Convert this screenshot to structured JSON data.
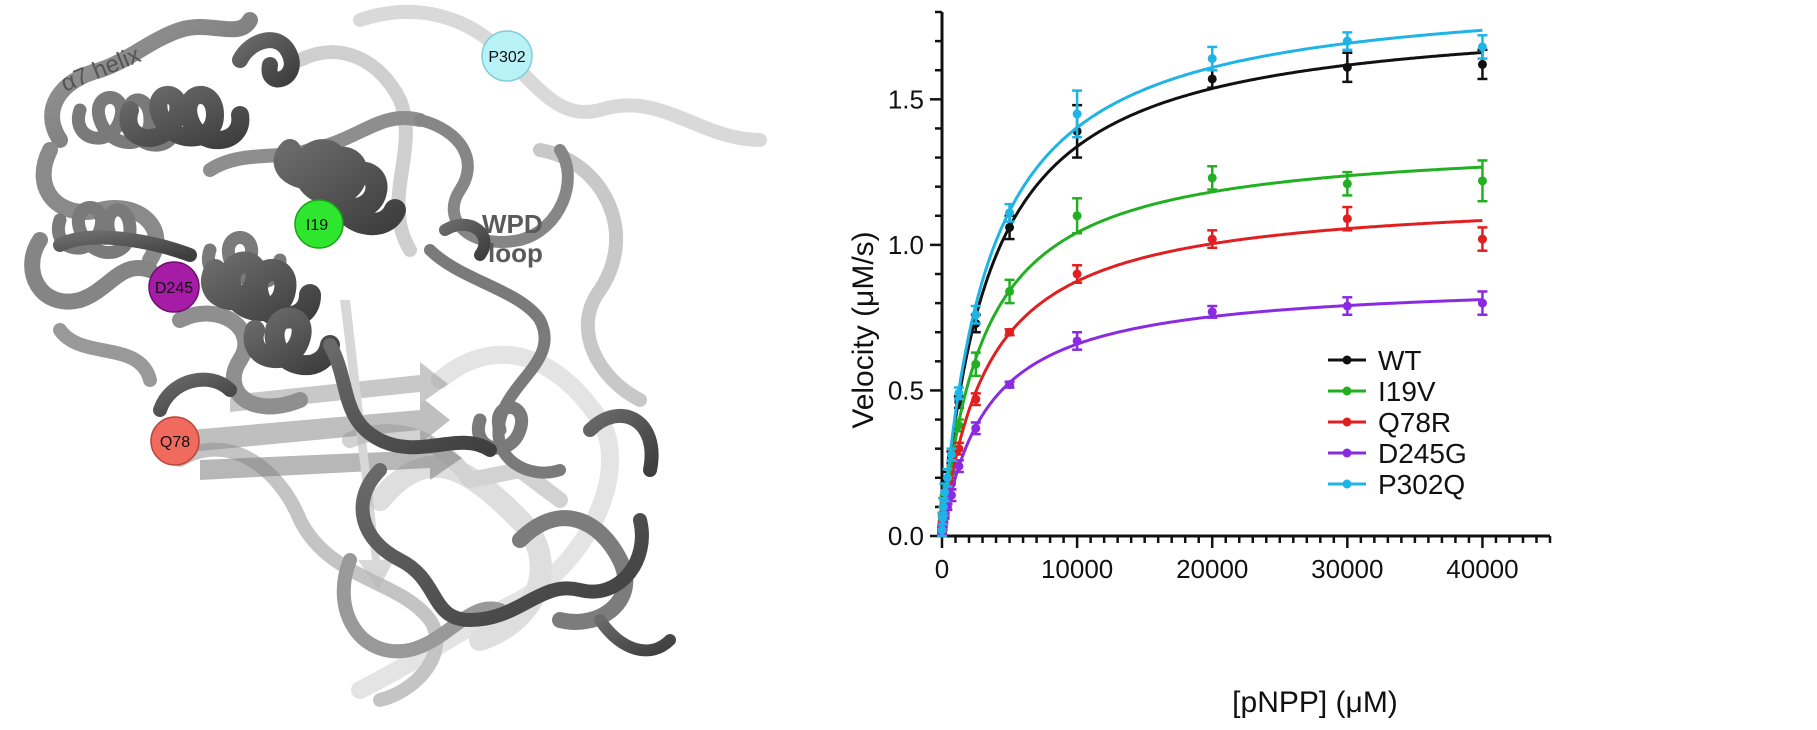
{
  "structure_panel": {
    "labels": {
      "helix": "α7 helix",
      "wpd_line1": "WPD",
      "wpd_line2": "loop"
    },
    "residues": [
      {
        "label": "P302",
        "color": "#b8f2f6"
      },
      {
        "label": "I19",
        "color": "#2ee62e"
      },
      {
        "label": "D245",
        "color": "#a61ca6"
      },
      {
        "label": "Q78",
        "color": "#f06a5e"
      }
    ]
  },
  "chart_data": {
    "type": "scatter",
    "title": "",
    "xlabel": "[pNPP] (μM)",
    "ylabel": "Velocity (μM/s)",
    "xlim": [
      0,
      45000
    ],
    "ylim": [
      0,
      1.8
    ],
    "x_ticks": [
      0,
      10000,
      20000,
      30000,
      40000
    ],
    "x_tick_labels": [
      "0",
      "10000",
      "20000",
      "30000",
      "40000"
    ],
    "y_ticks": [
      0.0,
      0.5,
      1.0,
      1.5
    ],
    "y_tick_labels": [
      "0.0",
      "0.5",
      "1.0",
      "1.5"
    ],
    "grid": false,
    "legend_position": "bottom-right",
    "fit": "Michaelis-Menten curves through each series",
    "x": [
      0,
      50,
      100,
      200,
      400,
      700,
      1250,
      2500,
      5000,
      10000,
      20000,
      30000,
      40000
    ],
    "series": [
      {
        "name": "WT",
        "color": "#111111",
        "values": [
          0.02,
          0.06,
          0.1,
          0.15,
          0.19,
          0.27,
          0.46,
          0.73,
          1.06,
          1.39,
          1.57,
          1.61,
          1.62
        ],
        "errors": [
          0.02,
          0.02,
          0.03,
          0.03,
          0.03,
          0.02,
          0.02,
          0.03,
          0.04,
          0.09,
          0.03,
          0.05,
          0.05
        ]
      },
      {
        "name": "I19V",
        "color": "#22b022",
        "values": [
          0.02,
          0.05,
          0.08,
          0.12,
          0.16,
          0.22,
          0.38,
          0.59,
          0.84,
          1.1,
          1.23,
          1.21,
          1.22
        ],
        "errors": [
          0.01,
          0.02,
          0.02,
          0.02,
          0.02,
          0.02,
          0.02,
          0.04,
          0.04,
          0.06,
          0.04,
          0.04,
          0.07
        ]
      },
      {
        "name": "Q78R",
        "color": "#e02020",
        "values": [
          0.02,
          0.04,
          0.06,
          0.09,
          0.13,
          0.18,
          0.3,
          0.47,
          0.7,
          0.9,
          1.02,
          1.09,
          1.02
        ],
        "errors": [
          0.01,
          0.01,
          0.01,
          0.02,
          0.02,
          0.02,
          0.02,
          0.02,
          0.01,
          0.03,
          0.03,
          0.04,
          0.04
        ]
      },
      {
        "name": "D245G",
        "color": "#8a2be2",
        "values": [
          0.01,
          0.03,
          0.05,
          0.07,
          0.1,
          0.14,
          0.24,
          0.37,
          0.52,
          0.67,
          0.77,
          0.79,
          0.8
        ],
        "errors": [
          0.01,
          0.01,
          0.01,
          0.01,
          0.01,
          0.02,
          0.02,
          0.02,
          0.01,
          0.03,
          0.02,
          0.03,
          0.04
        ]
      },
      {
        "name": "P302Q",
        "color": "#1eb4e6",
        "values": [
          0.02,
          0.06,
          0.1,
          0.15,
          0.2,
          0.28,
          0.49,
          0.76,
          1.11,
          1.45,
          1.64,
          1.7,
          1.68
        ],
        "errors": [
          0.02,
          0.02,
          0.03,
          0.03,
          0.03,
          0.02,
          0.02,
          0.03,
          0.03,
          0.08,
          0.04,
          0.03,
          0.04
        ]
      }
    ]
  }
}
